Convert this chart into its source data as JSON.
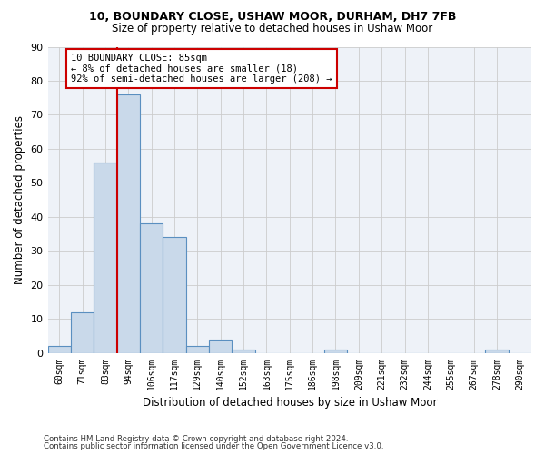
{
  "title1": "10, BOUNDARY CLOSE, USHAW MOOR, DURHAM, DH7 7FB",
  "title2": "Size of property relative to detached houses in Ushaw Moor",
  "xlabel": "Distribution of detached houses by size in Ushaw Moor",
  "ylabel": "Number of detached properties",
  "footnote1": "Contains HM Land Registry data © Crown copyright and database right 2024.",
  "footnote2": "Contains public sector information licensed under the Open Government Licence v3.0.",
  "bar_color": "#c9d9ea",
  "bar_edge_color": "#5a8fc0",
  "grid_color": "#cccccc",
  "bg_color": "#eef2f8",
  "annotation_line1": "10 BOUNDARY CLOSE: 85sqm",
  "annotation_line2": "← 8% of detached houses are smaller (18)",
  "annotation_line3": "92% of semi-detached houses are larger (208) →",
  "vline_color": "#cc0000",
  "categories": [
    "60sqm",
    "71sqm",
    "83sqm",
    "94sqm",
    "106sqm",
    "117sqm",
    "129sqm",
    "140sqm",
    "152sqm",
    "163sqm",
    "175sqm",
    "186sqm",
    "198sqm",
    "209sqm",
    "221sqm",
    "232sqm",
    "244sqm",
    "255sqm",
    "267sqm",
    "278sqm",
    "290sqm"
  ],
  "values": [
    2,
    12,
    56,
    76,
    38,
    34,
    2,
    4,
    1,
    0,
    0,
    0,
    1,
    0,
    0,
    0,
    0,
    0,
    0,
    1,
    0
  ],
  "ylim": [
    0,
    90
  ],
  "yticks": [
    0,
    10,
    20,
    30,
    40,
    50,
    60,
    70,
    80,
    90
  ]
}
